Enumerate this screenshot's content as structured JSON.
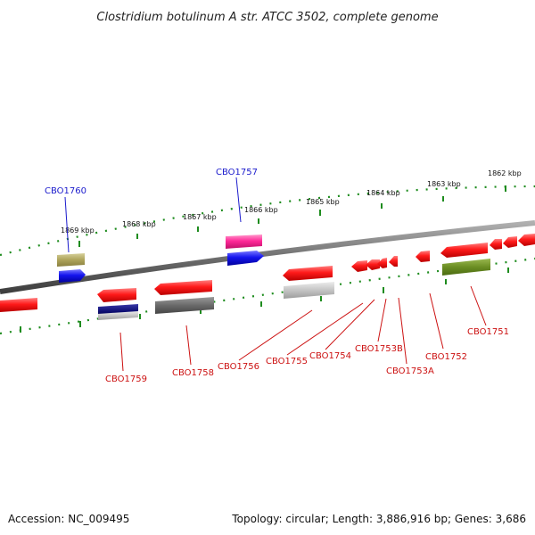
{
  "title": "Clostridium botulinum A str. ATCC 3502, complete genome",
  "accession": "Accession: NC_009495",
  "summary": "Topology: circular; Length: 3,886,916 bp; Genes: 3,686",
  "scale_labels": [
    "1869 kbp",
    "1868 kbp",
    "1867 kbp",
    "1866 kbp",
    "1865 kbp",
    "1864 kbp",
    "1863 kbp",
    "1862 kbp"
  ],
  "colors": {
    "backbone": "#7a7a7a",
    "tick": "#1e8c1e",
    "label_plus": "#1a1acc",
    "label_minus": "#cc1111",
    "gene_red": "#ee1111",
    "gene_blue": "#1111ee",
    "gene_magenta": "#ff2299",
    "cds_olive": "#b0a860",
    "cds_green": "#6b8e23",
    "cds_navy": "#101070",
    "cds_silver": "#bdbdbd",
    "cds_gray": "#6e6e6e"
  },
  "genes_plus": [
    "CBO1760",
    "CBO1757"
  ],
  "genes_minus": [
    "CBO1759",
    "CBO1758",
    "CBO1756",
    "CBO1755",
    "CBO1754",
    "CBO1753B",
    "CBO1753A",
    "CBO1752",
    "CBO1751"
  ]
}
